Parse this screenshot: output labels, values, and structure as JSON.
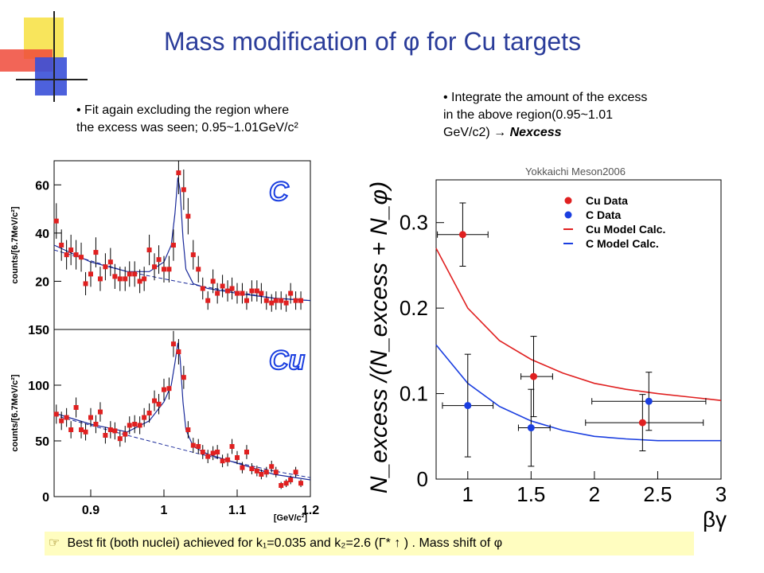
{
  "slide": {
    "title": "Mass modification  of φ for Cu targets",
    "bullet_left_line1": "Fit again excluding the region where",
    "bullet_left_line2": "the excess was seen; 0.95~1.01GeV/c²",
    "bullet_right_line1": "Integrate the amount of the excess",
    "bullet_right_line2": "in the above region(0.95~1.01",
    "bullet_right_line3": "GeV/c2)",
    "bullet_right_arrow": "→",
    "bullet_right_bold": "Nexcess",
    "watermark": "Yokkaichi Meson2006",
    "footer_pointer": "☞",
    "footer_text": "Best fit (both nuclei) achieved for k₁=0.035 and k₂=2.6 (Γ* ↑ ) . Mass shift of φ"
  },
  "colors": {
    "title": "#2b3d9a",
    "red": "#e02020",
    "blue": "#1a3ee0",
    "footer_bg": "#fffdc0",
    "deco_yellow": "#f7e24a",
    "deco_blue": "#3a50d8",
    "deco_red": "#f04a3a"
  },
  "chart_data": [
    {
      "type": "scatter",
      "panel": "C",
      "label": "C",
      "ylabel": "counts/[6.7MeV/c²]",
      "xlim": [
        0.85,
        1.2
      ],
      "ylim": [
        0,
        70
      ],
      "yticks": [
        20,
        40,
        60
      ],
      "ytick_labels": [
        "20",
        "40",
        "60"
      ],
      "series": [
        {
          "x": [
            0.853,
            0.86,
            0.867,
            0.873,
            0.88,
            0.887,
            0.893,
            0.9,
            0.907,
            0.913,
            0.92,
            0.927,
            0.933,
            0.94,
            0.947,
            0.953,
            0.96,
            0.967,
            0.973,
            0.98,
            0.987,
            0.993,
            1.0,
            1.007,
            1.013,
            1.02,
            1.027,
            1.033,
            1.04,
            1.047,
            1.053,
            1.06,
            1.067,
            1.073,
            1.08,
            1.087,
            1.093,
            1.1,
            1.107,
            1.113,
            1.12,
            1.127,
            1.133,
            1.14,
            1.147,
            1.153,
            1.16,
            1.167,
            1.173,
            1.18,
            1.187
          ],
          "y": [
            45,
            35,
            31,
            33,
            31,
            30,
            19,
            23,
            32,
            21,
            26,
            28,
            22,
            21,
            21,
            23,
            23,
            20,
            21,
            33,
            26,
            29,
            25,
            25,
            35,
            65,
            58,
            47,
            31,
            25,
            17,
            12,
            20,
            15,
            18,
            16,
            17,
            15,
            15,
            12,
            16,
            16,
            15,
            12,
            11,
            12,
            12,
            11,
            15,
            12,
            12
          ]
        }
      ],
      "fit_line": {
        "x": [
          0.85,
          0.9,
          0.95,
          0.98,
          1.0,
          1.01,
          1.015,
          1.019,
          1.022,
          1.026,
          1.03,
          1.04,
          1.06,
          1.1,
          1.15,
          1.2
        ],
        "y": [
          35,
          28,
          24,
          24,
          28,
          35,
          48,
          63,
          58,
          38,
          25,
          19,
          17,
          15,
          13,
          12
        ]
      },
      "background_line": {
        "x": [
          0.85,
          0.95,
          1.05,
          1.15,
          1.2
        ],
        "y": [
          33,
          24,
          18,
          13,
          12
        ]
      }
    },
    {
      "type": "scatter",
      "panel": "Cu",
      "label": "Cu",
      "ylabel": "counts/[6.7MeV/c²]",
      "xlabel": "[GeV/c²]",
      "xlim": [
        0.85,
        1.2
      ],
      "ylim": [
        0,
        150
      ],
      "yticks": [
        0,
        50,
        100,
        150
      ],
      "ytick_labels": [
        "0",
        "50",
        "100",
        "150"
      ],
      "xticks": [
        0.9,
        1.0,
        1.1,
        1.2
      ],
      "xtick_labels": [
        "0.9",
        "1",
        "1.1",
        "1.2"
      ],
      "series": [
        {
          "x": [
            0.853,
            0.86,
            0.867,
            0.873,
            0.88,
            0.887,
            0.893,
            0.9,
            0.907,
            0.913,
            0.92,
            0.927,
            0.933,
            0.94,
            0.947,
            0.953,
            0.96,
            0.967,
            0.973,
            0.98,
            0.987,
            0.993,
            1.0,
            1.007,
            1.013,
            1.02,
            1.027,
            1.033,
            1.04,
            1.047,
            1.053,
            1.06,
            1.067,
            1.073,
            1.08,
            1.087,
            1.093,
            1.1,
            1.107,
            1.113,
            1.12,
            1.127,
            1.133,
            1.14,
            1.147,
            1.153,
            1.16,
            1.167,
            1.173,
            1.18,
            1.187
          ],
          "y": [
            74,
            68,
            71,
            60,
            80,
            60,
            58,
            71,
            65,
            76,
            55,
            60,
            59,
            52,
            56,
            64,
            65,
            64,
            71,
            75,
            86,
            83,
            96,
            97,
            137,
            130,
            107,
            60,
            46,
            45,
            40,
            36,
            39,
            40,
            32,
            33,
            45,
            35,
            26,
            40,
            25,
            23,
            20,
            22,
            27,
            22,
            10,
            12,
            15,
            22,
            12
          ]
        }
      ],
      "fit_line": {
        "x": [
          0.85,
          0.9,
          0.95,
          0.98,
          1.0,
          1.01,
          1.015,
          1.019,
          1.022,
          1.026,
          1.03,
          1.04,
          1.06,
          1.1,
          1.15,
          1.2
        ],
        "y": [
          75,
          65,
          58,
          68,
          85,
          100,
          120,
          138,
          125,
          85,
          60,
          45,
          38,
          30,
          20,
          15
        ]
      },
      "background_line": {
        "x": [
          0.85,
          0.95,
          1.05,
          1.15,
          1.2
        ],
        "y": [
          73,
          55,
          38,
          23,
          17
        ]
      }
    },
    {
      "type": "scatter",
      "panel": "ratio",
      "ylabel": "N_excess /(N_excess + N_φ)",
      "xlabel": "βγ",
      "xlim": [
        0.75,
        3.0
      ],
      "ylim": [
        0,
        0.35
      ],
      "xticks": [
        1,
        1.5,
        2,
        2.5,
        3
      ],
      "xtick_labels": [
        "1",
        "1.5",
        "2",
        "2.5",
        "3"
      ],
      "yticks": [
        0,
        0.1,
        0.2,
        0.3
      ],
      "ytick_labels": [
        "0",
        "0.1",
        "0.2",
        "0.3"
      ],
      "series": [
        {
          "name": "Cu Data",
          "color": "#e02020",
          "x": [
            0.96,
            1.52,
            2.38
          ],
          "y": [
            0.286,
            0.12,
            0.066
          ],
          "xerr_lo": [
            0.2,
            0.1,
            0.45
          ],
          "xerr_hi": [
            0.2,
            0.15,
            0.48
          ],
          "yerr": [
            0.037,
            0.047,
            0.033
          ]
        },
        {
          "name": "C  Data",
          "color": "#1a3ee0",
          "x": [
            1.0,
            1.5,
            2.43
          ],
          "y": [
            0.086,
            0.06,
            0.091
          ],
          "xerr_lo": [
            0.2,
            0.1,
            0.45
          ],
          "xerr_hi": [
            0.2,
            0.15,
            0.45
          ],
          "yerr": [
            0.06,
            0.045,
            0.034
          ]
        },
        {
          "name": "Cu Model Calc.",
          "color": "#e02020",
          "line": true,
          "x": [
            0.75,
            1.0,
            1.25,
            1.5,
            1.75,
            2.0,
            2.25,
            2.5,
            2.75,
            3.0
          ],
          "y": [
            0.27,
            0.2,
            0.162,
            0.14,
            0.124,
            0.112,
            0.105,
            0.1,
            0.096,
            0.092
          ]
        },
        {
          "name": "C  Model Calc.",
          "color": "#1a3ee0",
          "line": true,
          "x": [
            0.75,
            1.0,
            1.25,
            1.5,
            1.75,
            2.0,
            2.25,
            2.5,
            2.75,
            3.0
          ],
          "y": [
            0.157,
            0.112,
            0.085,
            0.068,
            0.057,
            0.05,
            0.047,
            0.045,
            0.045,
            0.045
          ]
        }
      ],
      "legend_placement": "top-right"
    }
  ]
}
